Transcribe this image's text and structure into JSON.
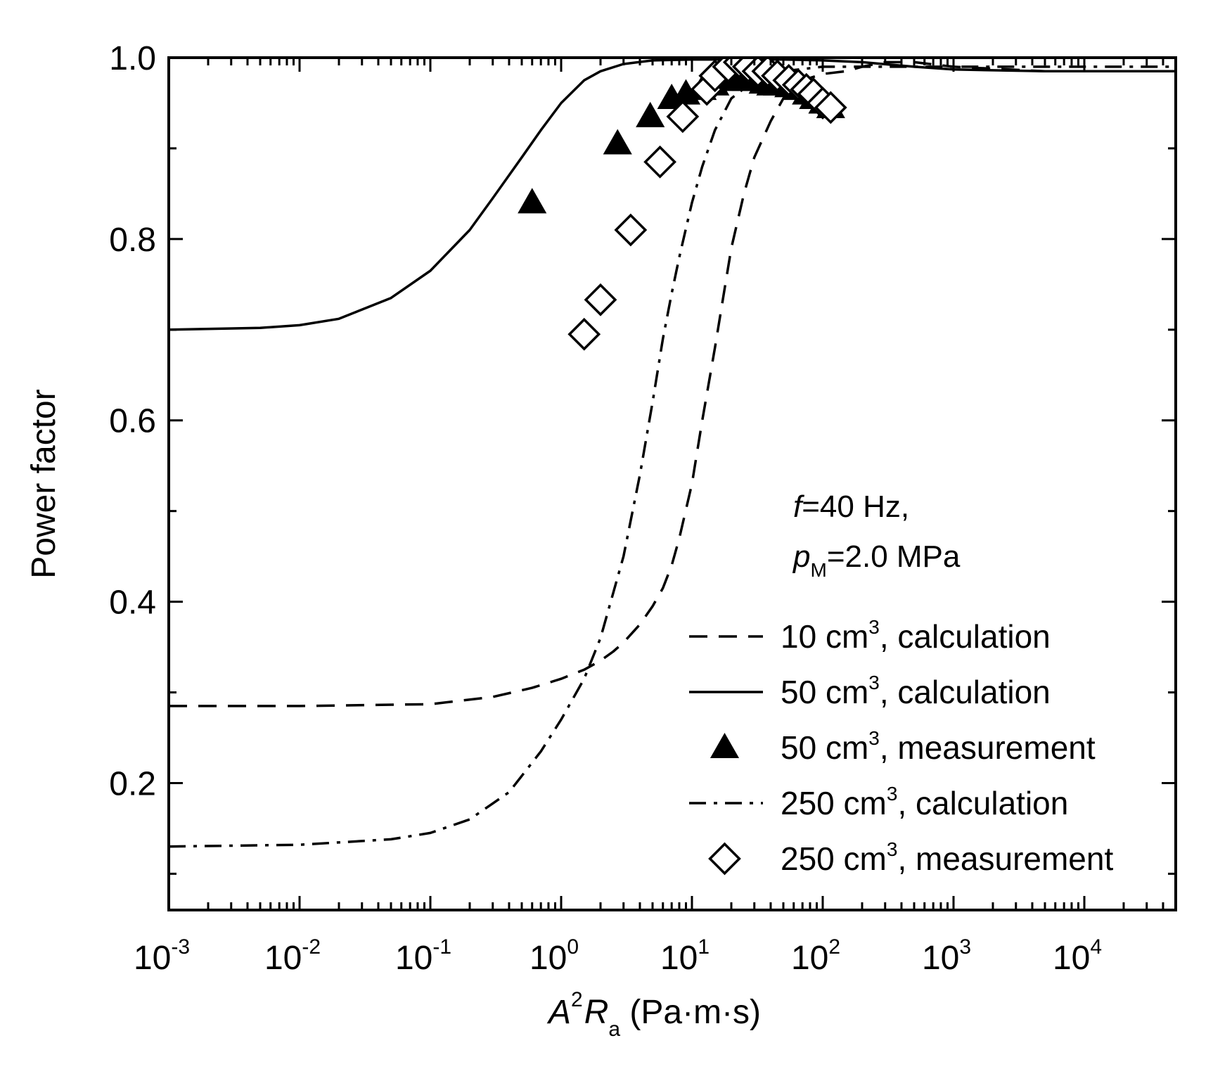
{
  "chart_data": {
    "type": "scatter",
    "xscale": "log",
    "xlim": [
      0.001,
      50000
    ],
    "ylim": [
      0.06,
      1.0
    ],
    "xlabel": {
      "main": "A",
      "sup": "2",
      "var": "R",
      "sub": "a",
      "unit": " (Pa·m·s)"
    },
    "ylabel": "Power factor",
    "x_ticks": [
      {
        "base": "10",
        "exp": "-3",
        "value": 0.001
      },
      {
        "base": "10",
        "exp": "-2",
        "value": 0.01
      },
      {
        "base": "10",
        "exp": "-1",
        "value": 0.1
      },
      {
        "base": "10",
        "exp": "0",
        "value": 1
      },
      {
        "base": "10",
        "exp": "1",
        "value": 10
      },
      {
        "base": "10",
        "exp": "2",
        "value": 100
      },
      {
        "base": "10",
        "exp": "3",
        "value": 1000
      },
      {
        "base": "10",
        "exp": "4",
        "value": 10000
      }
    ],
    "y_ticks": [
      {
        "label": "0.2",
        "value": 0.2
      },
      {
        "label": "0.4",
        "value": 0.4
      },
      {
        "label": "0.6",
        "value": 0.6
      },
      {
        "label": "0.8",
        "value": 0.8
      },
      {
        "label": "1.0",
        "value": 1.0
      }
    ],
    "y_minor_ticks": [
      0.1,
      0.3,
      0.5,
      0.7,
      0.9
    ],
    "grid": false,
    "annotation": {
      "line1_italic": "f",
      "line1_rest": "=40 Hz,",
      "line2_italic": "p",
      "line2_sub": "M",
      "line2_rest": "=2.0 MPa"
    },
    "legend_position": "lower-right",
    "series": [
      {
        "name": "10 cm",
        "name_sup": "3",
        "name_suffix": ", calculation",
        "kind": "line",
        "dash": "dashed",
        "x": [
          0.001,
          0.01,
          0.1,
          0.3,
          0.6,
          1,
          1.5,
          2,
          2.5,
          3,
          4,
          5,
          6,
          7,
          8,
          10,
          12,
          15,
          18,
          20,
          25,
          30,
          40,
          50,
          70,
          100,
          150,
          200,
          300,
          500,
          1000,
          5000,
          50000
        ],
        "y": [
          0.285,
          0.285,
          0.287,
          0.295,
          0.305,
          0.315,
          0.325,
          0.335,
          0.345,
          0.355,
          0.375,
          0.395,
          0.415,
          0.44,
          0.47,
          0.53,
          0.6,
          0.68,
          0.75,
          0.79,
          0.85,
          0.89,
          0.93,
          0.955,
          0.975,
          0.982,
          0.985,
          0.99,
          0.995,
          0.995,
          0.99,
          0.985,
          0.985
        ]
      },
      {
        "name": "50 cm",
        "name_sup": "3",
        "name_suffix": ", calculation",
        "kind": "line",
        "dash": "solid",
        "x": [
          0.001,
          0.005,
          0.01,
          0.02,
          0.05,
          0.1,
          0.2,
          0.3,
          0.5,
          0.7,
          1,
          1.5,
          2,
          3,
          5,
          10,
          20,
          50,
          100,
          200,
          500,
          1000,
          5000,
          50000
        ],
        "y": [
          0.7,
          0.702,
          0.705,
          0.712,
          0.735,
          0.765,
          0.81,
          0.845,
          0.89,
          0.92,
          0.95,
          0.975,
          0.985,
          0.993,
          0.997,
          0.998,
          0.998,
          0.998,
          0.997,
          0.995,
          0.99,
          0.987,
          0.985,
          0.985
        ]
      },
      {
        "name": "50 cm",
        "name_sup": "3",
        "name_suffix": ", measurement",
        "kind": "marker",
        "marker": "filled-triangle",
        "x": [
          0.6,
          2.7,
          4.8,
          7,
          9,
          12,
          15,
          18,
          22,
          26,
          30,
          35,
          40,
          45,
          55,
          65,
          75,
          85,
          100,
          115
        ],
        "y": [
          0.84,
          0.905,
          0.935,
          0.955,
          0.96,
          0.965,
          0.97,
          0.975,
          0.975,
          0.975,
          0.975,
          0.972,
          0.97,
          0.97,
          0.968,
          0.965,
          0.96,
          0.955,
          0.95,
          0.945
        ]
      },
      {
        "name": "250 cm",
        "name_sup": "3",
        "name_suffix": ", calculation",
        "kind": "line",
        "dash": "dash-dot",
        "x": [
          0.001,
          0.01,
          0.05,
          0.1,
          0.2,
          0.4,
          0.7,
          1,
          1.5,
          2,
          3,
          4,
          5,
          6,
          7,
          8,
          10,
          12,
          15,
          20,
          30,
          50,
          100,
          1000,
          50000
        ],
        "y": [
          0.13,
          0.132,
          0.138,
          0.145,
          0.16,
          0.19,
          0.235,
          0.27,
          0.315,
          0.36,
          0.45,
          0.54,
          0.62,
          0.69,
          0.74,
          0.78,
          0.84,
          0.88,
          0.92,
          0.955,
          0.975,
          0.985,
          0.99,
          0.99,
          0.99
        ]
      },
      {
        "name": "250 cm",
        "name_sup": "3",
        "name_suffix": ", measurement",
        "kind": "marker",
        "marker": "open-diamond",
        "x": [
          1.5,
          2,
          3.4,
          5.7,
          8.5,
          13,
          15,
          19,
          23,
          27,
          32,
          38,
          45,
          55,
          65,
          75,
          85,
          100,
          115
        ],
        "y": [
          0.695,
          0.733,
          0.81,
          0.885,
          0.935,
          0.965,
          0.98,
          0.99,
          0.995,
          0.99,
          0.985,
          0.985,
          0.98,
          0.975,
          0.97,
          0.965,
          0.96,
          0.95,
          0.945
        ]
      }
    ]
  }
}
